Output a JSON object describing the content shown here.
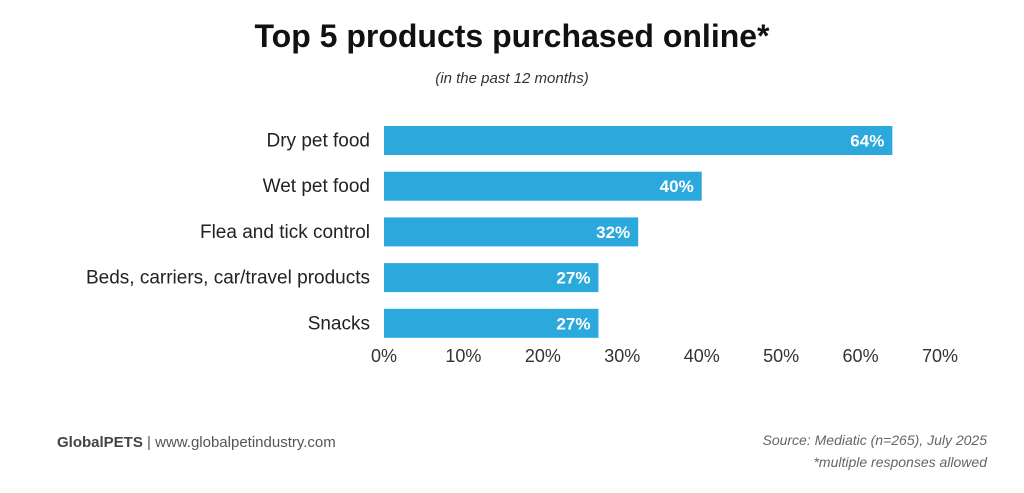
{
  "chart_data": {
    "type": "bar",
    "orientation": "horizontal",
    "title": "Top 5 products purchased online*",
    "subtitle": "(in the past 12 months)",
    "categories": [
      "Dry pet food",
      "Wet pet food",
      "Flea and tick control",
      "Beds, carriers, car/travel products",
      "Snacks"
    ],
    "values": [
      64,
      40,
      32,
      27,
      27
    ],
    "data_labels": [
      "64%",
      "40%",
      "32%",
      "27%",
      "27%"
    ],
    "xlim": [
      0,
      70
    ],
    "xticks": [
      "0%",
      "10%",
      "20%",
      "30%",
      "40%",
      "50%",
      "60%",
      "70%"
    ],
    "grid": false,
    "bar_color": "#2ba8dc"
  },
  "footer": {
    "brand": "GlobalPETS",
    "separator": "|",
    "url": "www.globalpetindustry.com",
    "source": "Source: Mediatic (n=265), July 2025",
    "note": "*multiple responses allowed"
  }
}
